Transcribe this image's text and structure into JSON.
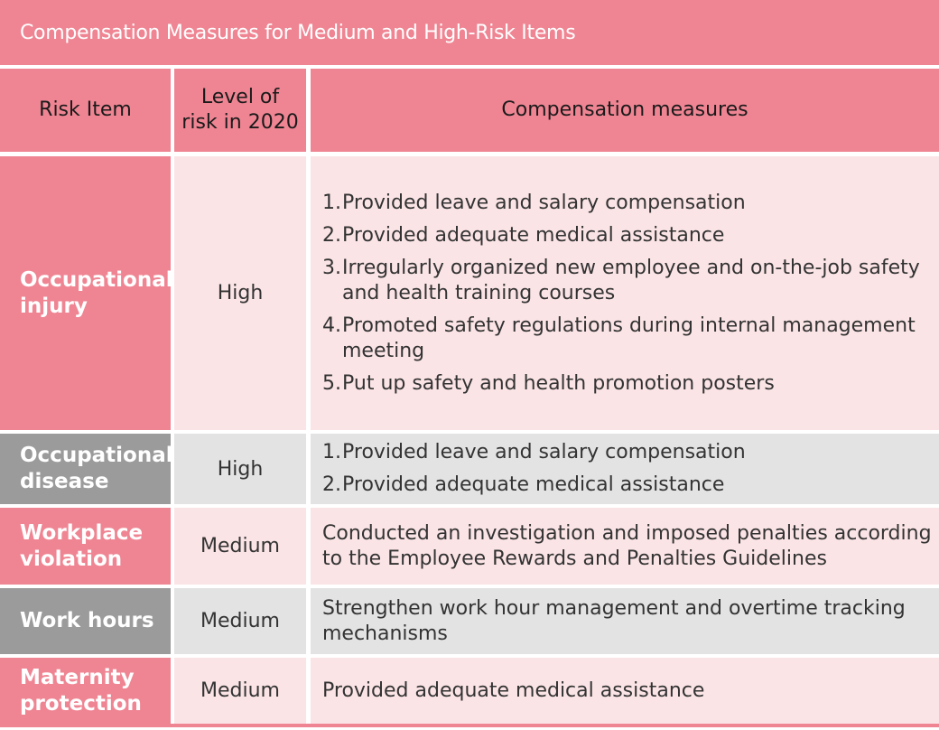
{
  "title": "Compensation Measures for Medium and High-Risk Items",
  "headers": {
    "risk_item": "Risk Item",
    "level": "Level of risk in 2020",
    "measures": "Compensation measures"
  },
  "rows": [
    {
      "risk": "Occupational injury",
      "level": "High",
      "measures": [
        {
          "num": "1.",
          "text": "Provided leave and salary compensation"
        },
        {
          "num": "2.",
          "text": "Provided adequate medical assistance"
        },
        {
          "num": "3.",
          "text": "Irregularly organized new employee and on-the-job safety and health training courses"
        },
        {
          "num": "4.",
          "text": "Promoted safety regulations during internal management meeting"
        },
        {
          "num": "5.",
          "text": "Put up safety and health promotion posters"
        }
      ]
    },
    {
      "risk": "Occupational disease",
      "level": "High",
      "measures": [
        {
          "num": "1.",
          "text": "Provided leave and salary compensation"
        },
        {
          "num": "2.",
          "text": "Provided adequate medical assistance"
        }
      ]
    },
    {
      "risk": "Workplace violation",
      "level": "Medium",
      "measure_text": "Conducted an investigation and imposed penalties according to the Employee Rewards and Penalties Guidelines"
    },
    {
      "risk": "Work hours",
      "level": "Medium",
      "measure_text": "Strengthen work hour management and overtime tracking mechanisms"
    },
    {
      "risk": "Maternity protection",
      "level": "Medium",
      "measure_text": "Provided adequate medical assistance"
    }
  ],
  "colors": {
    "accent_pink": "#ef8593",
    "label_gray": "#9b9b9b",
    "light_pink": "#fbe4e6",
    "light_gray": "#e3e3e3"
  }
}
